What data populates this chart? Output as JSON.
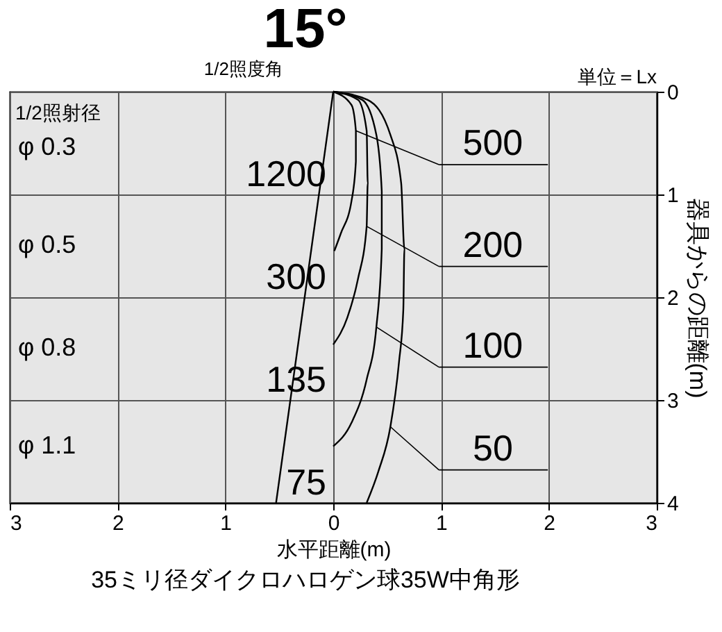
{
  "chart_data": {
    "type": "line",
    "title": "15°",
    "xlabel": "水平距離(m)",
    "ylabel": "器具からの距離(m)",
    "xlim": [
      -3,
      3
    ],
    "xticks": [
      {
        "value": -3,
        "label": "3"
      },
      {
        "value": -2,
        "label": "2"
      },
      {
        "value": -1,
        "label": "1"
      },
      0,
      1,
      2,
      3
    ],
    "ylim": [
      4,
      0
    ],
    "yticks": [
      0,
      1,
      2,
      3,
      4
    ],
    "grid": true,
    "legend": "right",
    "marker": "none",
    "line_style": "solid",
    "series": [
      {
        "type": "line",
        "color": "#000000",
        "x": [
          0,
          -0.53
        ],
        "values": [
          0,
          4.0
        ]
      },
      {
        "name": "500",
        "color": "#000000",
        "x": [
          0,
          0.17,
          0.21,
          0.21,
          0.17,
          0.07,
          0.01
        ],
        "values": [
          0,
          0.13,
          0.38,
          0.68,
          1.06,
          1.38,
          1.55
        ]
      },
      {
        "name": "200",
        "color": "#000000",
        "x": [
          0,
          0.23,
          0.31,
          0.32,
          0.31,
          0.23,
          0.13,
          0
        ],
        "values": [
          0,
          0.08,
          0.38,
          0.89,
          1.31,
          1.82,
          2.2,
          2.46
        ]
      },
      {
        "name": "100",
        "color": "#000000",
        "x": [
          0,
          0.27,
          0.4,
          0.45,
          0.45,
          0.4,
          0.31,
          0.17,
          0
        ],
        "values": [
          0,
          0.08,
          0.42,
          0.97,
          1.53,
          2.29,
          2.8,
          3.22,
          3.45
        ]
      },
      {
        "name": "50",
        "color": "#000000",
        "x": [
          0,
          0.32,
          0.53,
          0.63,
          0.66,
          0.65,
          0.61,
          0.53,
          0.42,
          0.31
        ],
        "values": [
          0,
          0.08,
          0.42,
          0.89,
          1.53,
          2.12,
          2.63,
          3.26,
          3.69,
          4.0
        ]
      }
    ],
    "annotations": [
      "1/2照度角",
      "単位＝Lx",
      "1/2照射径",
      "35ミリ径ダイクロハロゲン球35W中角形",
      "1200",
      "300",
      "135",
      "75",
      "φ 0.3",
      "φ 0.5",
      "φ 0.8",
      "φ 1.1"
    ]
  }
}
